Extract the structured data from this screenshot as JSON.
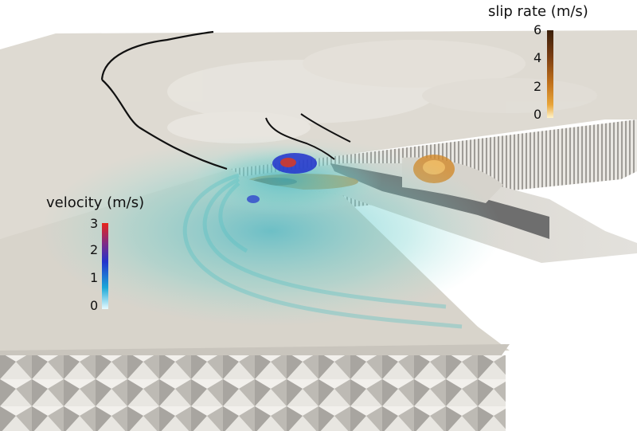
{
  "legends": {
    "slip_rate": {
      "title": "slip rate (m/s)",
      "ticks": [
        "6",
        "4",
        "2",
        "0"
      ],
      "colors": [
        "#3a1f0a",
        "#7a3d12",
        "#c0701a",
        "#e8a53a",
        "#fff3c8"
      ]
    },
    "velocity": {
      "title": "velocity (m/s)",
      "ticks": [
        "3",
        "2",
        "1",
        "0"
      ],
      "colors": [
        "#e8241a",
        "#7a2a8a",
        "#2233cc",
        "#1aa8d8",
        "#e8fbff"
      ]
    }
  },
  "colors": {
    "ground": "#dcd8cf",
    "ground_shadow": "#c9c5bb",
    "fault_dark": "#6b6b6b",
    "fault_light": "#d7d4cd",
    "wave_teal": "#5fc9c7",
    "mesh_light": "#f1efea",
    "mesh_dark": "#a9a6a0"
  }
}
